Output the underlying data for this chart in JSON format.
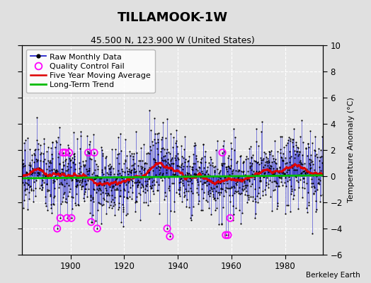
{
  "title": "TILLAMOOK-1W",
  "subtitle": "45.500 N, 123.900 W (United States)",
  "ylabel": "Temperature Anomaly (°C)",
  "credit": "Berkeley Earth",
  "ylim": [
    -6,
    10
  ],
  "yticks": [
    -6,
    -4,
    -2,
    0,
    2,
    4,
    6,
    8,
    10
  ],
  "xlim": [
    1882,
    1994
  ],
  "xticks": [
    1900,
    1920,
    1940,
    1960,
    1980
  ],
  "start_year": 1882,
  "end_year": 1993,
  "background_color": "#e0e0e0",
  "plot_bg_color": "#e8e8e8",
  "line_color": "#2222cc",
  "dot_color": "#000000",
  "ma_color": "#dd0000",
  "trend_color": "#00bb00",
  "qc_fail_color": "#ff00ff",
  "title_fontsize": 13,
  "subtitle_fontsize": 9,
  "legend_fontsize": 8
}
